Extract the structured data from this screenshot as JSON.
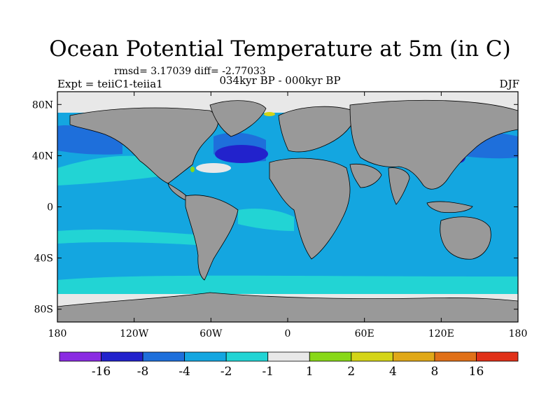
{
  "title": "Ocean Potential Temperature at 5m (in C)",
  "stats": "rmsd= 3.17039 diff= -2.77033",
  "experiment": "Expt = teiiC1-teiia1",
  "period": "034kyr BP - 000kyr BP",
  "season": "DJF",
  "map": {
    "lon_range": [
      -180,
      180
    ],
    "lat_range": [
      -90,
      90
    ],
    "x_ticks": [
      {
        "value": -180,
        "label": "180"
      },
      {
        "value": -120,
        "label": "120W"
      },
      {
        "value": -60,
        "label": "60W"
      },
      {
        "value": 0,
        "label": "0"
      },
      {
        "value": 60,
        "label": "60E"
      },
      {
        "value": 120,
        "label": "120E"
      },
      {
        "value": 180,
        "label": "180"
      }
    ],
    "y_ticks": [
      {
        "value": 80,
        "label": "80N"
      },
      {
        "value": 40,
        "label": "40N"
      },
      {
        "value": 0,
        "label": "0"
      },
      {
        "value": -40,
        "label": "40S"
      },
      {
        "value": -80,
        "label": "80S"
      }
    ],
    "land_color": "#999999",
    "coast_color": "#000000"
  },
  "colorbar": {
    "colors": [
      "#8a2be2",
      "#2222cc",
      "#1e6fdb",
      "#14a6e0",
      "#22d4d4",
      "#e8e8e8",
      "#88d818",
      "#d4d418",
      "#e0a818",
      "#e07018",
      "#e03018"
    ],
    "labels": [
      "-16",
      "-8",
      "-4",
      "-2",
      "-1",
      "1",
      "2",
      "4",
      "8",
      "16"
    ]
  }
}
